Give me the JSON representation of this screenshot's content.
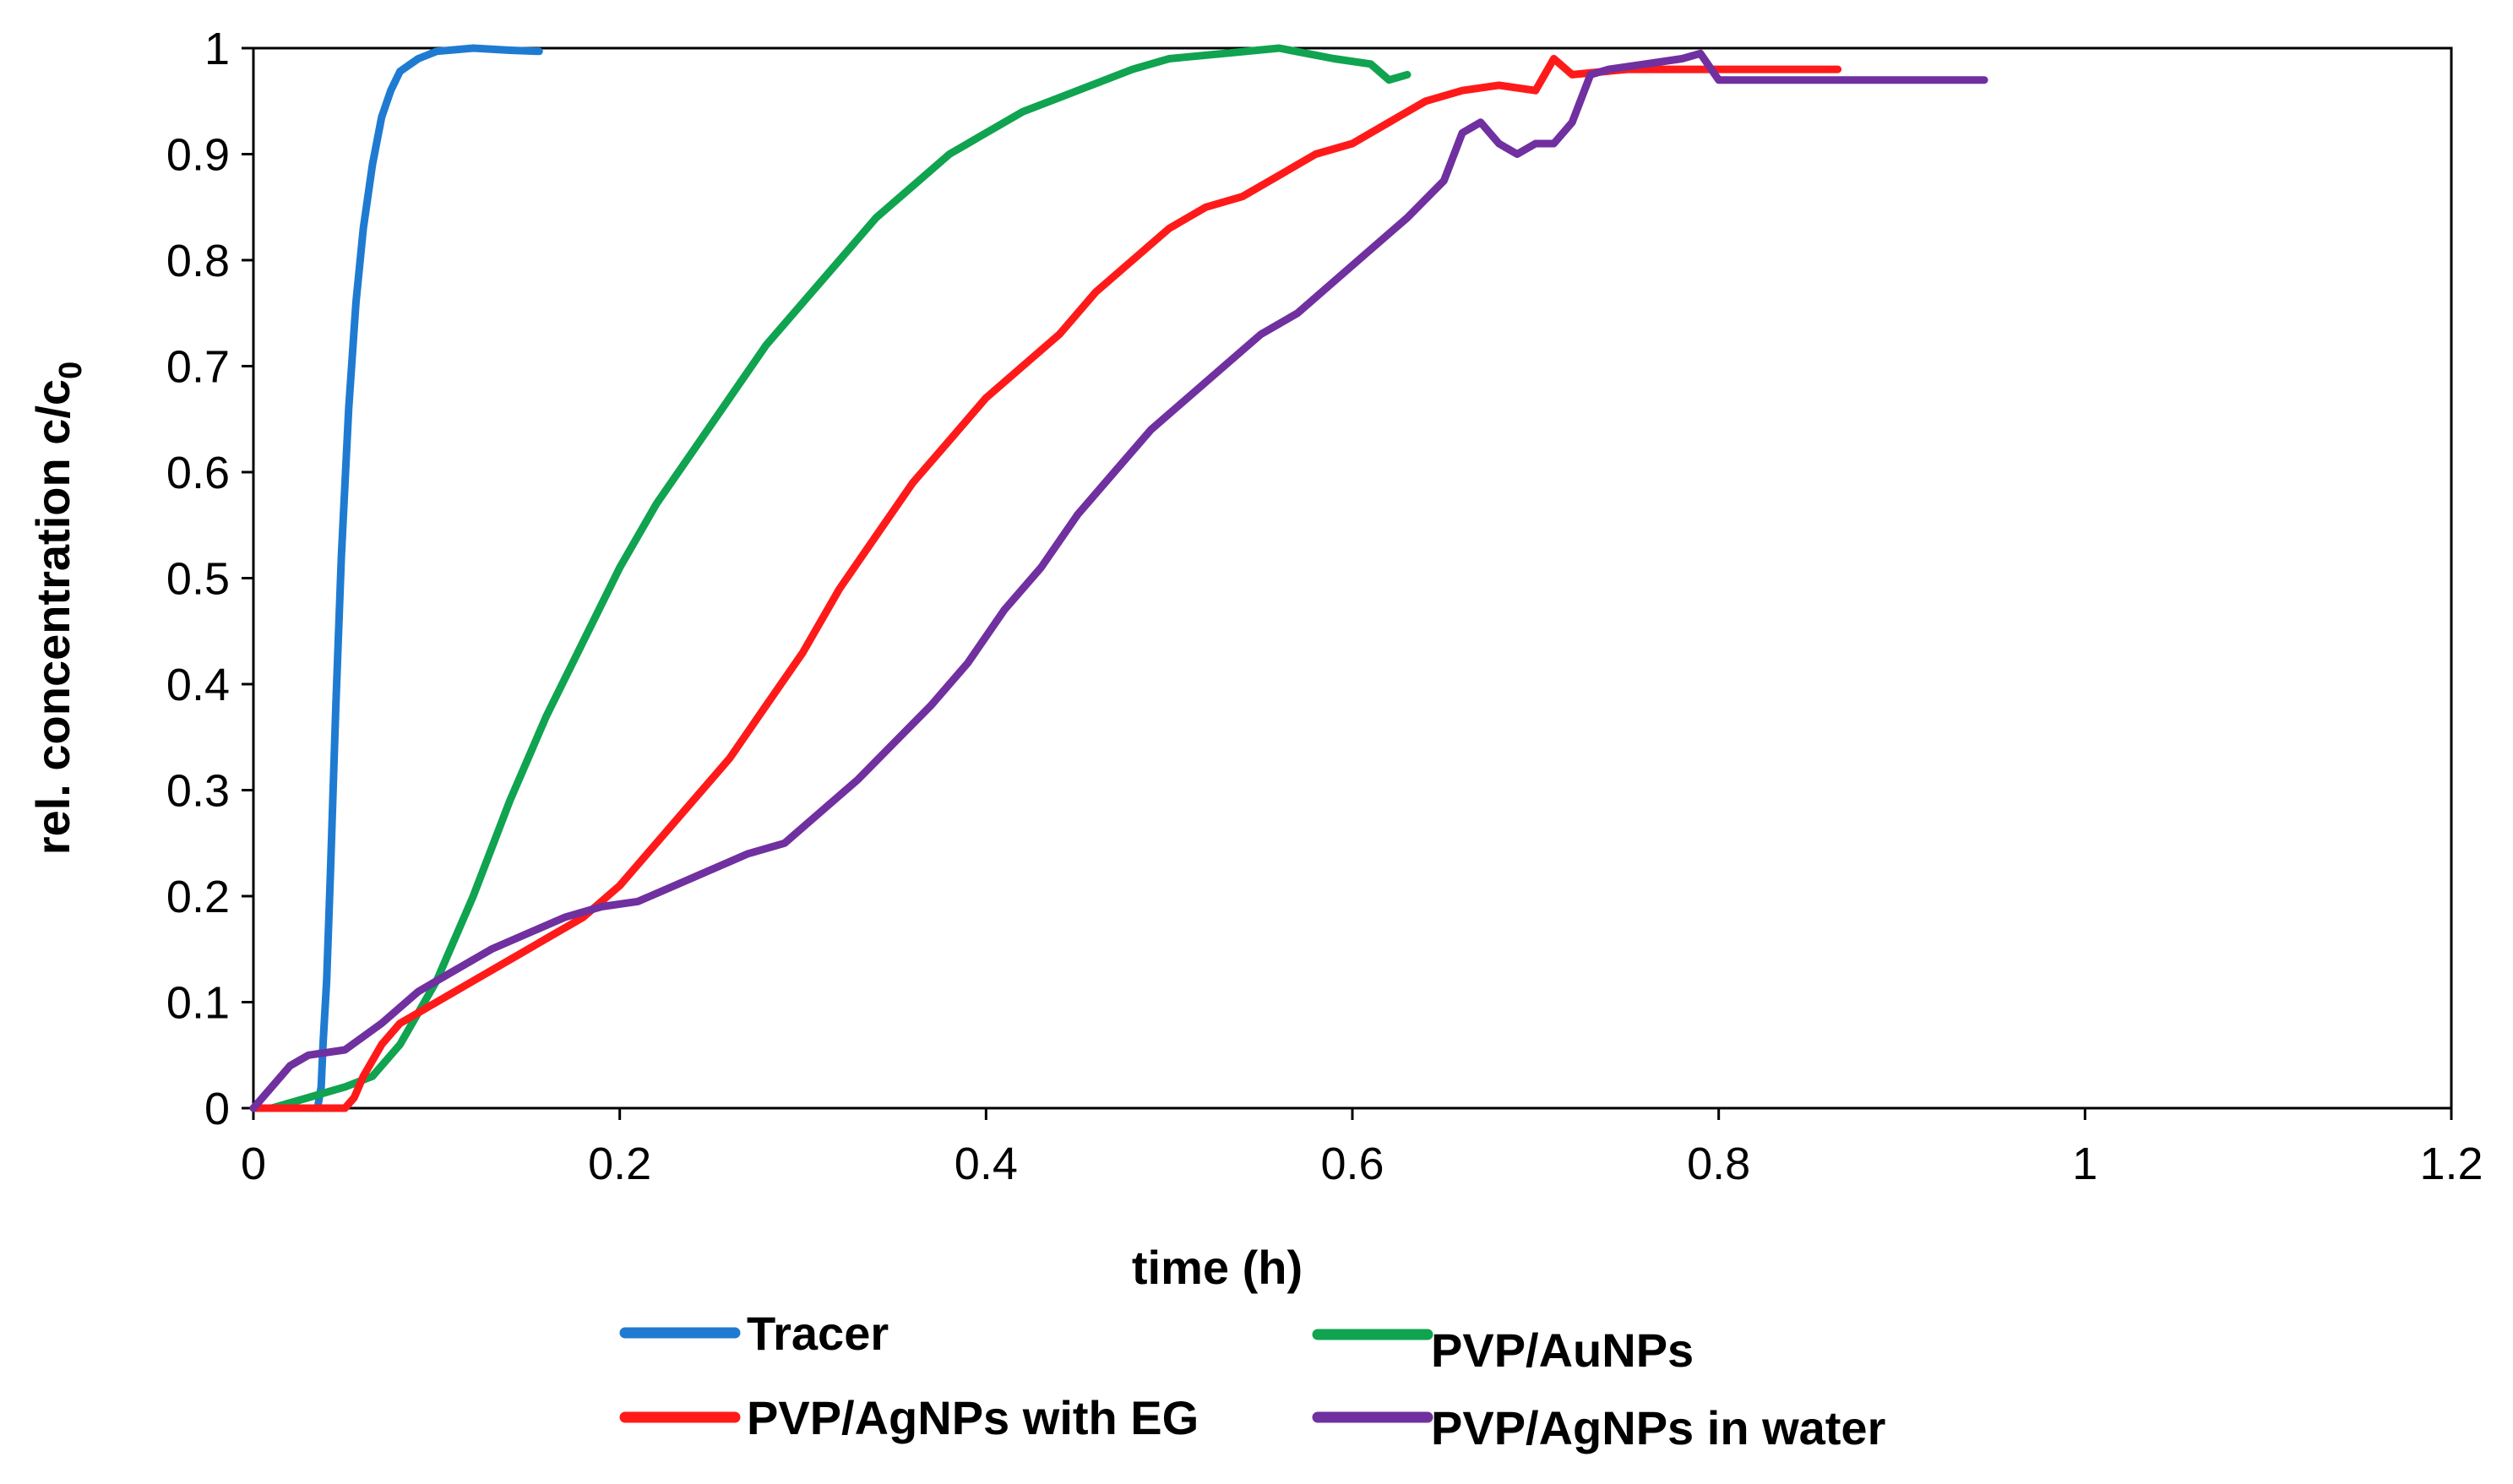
{
  "chart_data": {
    "type": "line",
    "title": "",
    "xlabel": "time (h)",
    "ylabel": "rel. concentration c/c",
    "ylabel_subscript": "0",
    "xlim": [
      0,
      1.2
    ],
    "ylim": [
      0,
      1
    ],
    "grid": false,
    "legend_position": "bottom",
    "x_ticks": [
      "0",
      "0.2",
      "0.4",
      "0.6",
      "0.8",
      "1",
      "1.2"
    ],
    "y_ticks": [
      "0",
      "0.1",
      "0.2",
      "0.3",
      "0.4",
      "0.5",
      "0.6",
      "0.7",
      "0.8",
      "0.9",
      "1"
    ],
    "series": [
      {
        "name": "Tracer",
        "color": "#1f7bd1",
        "points": [
          [
            0.0,
            0.0
          ],
          [
            0.035,
            0.0
          ],
          [
            0.037,
            0.02
          ],
          [
            0.038,
            0.06
          ],
          [
            0.04,
            0.12
          ],
          [
            0.042,
            0.22
          ],
          [
            0.045,
            0.38
          ],
          [
            0.048,
            0.52
          ],
          [
            0.052,
            0.66
          ],
          [
            0.056,
            0.76
          ],
          [
            0.06,
            0.83
          ],
          [
            0.065,
            0.89
          ],
          [
            0.07,
            0.935
          ],
          [
            0.075,
            0.96
          ],
          [
            0.08,
            0.978
          ],
          [
            0.09,
            0.99
          ],
          [
            0.1,
            0.997
          ],
          [
            0.12,
            1.0
          ],
          [
            0.14,
            0.998
          ],
          [
            0.156,
            0.997
          ]
        ]
      },
      {
        "name": "PVP/AuNPs",
        "color": "#10a350",
        "points": [
          [
            0.01,
            0.0
          ],
          [
            0.03,
            0.01
          ],
          [
            0.05,
            0.02
          ],
          [
            0.065,
            0.03
          ],
          [
            0.08,
            0.06
          ],
          [
            0.1,
            0.12
          ],
          [
            0.12,
            0.2
          ],
          [
            0.14,
            0.29
          ],
          [
            0.16,
            0.37
          ],
          [
            0.18,
            0.44
          ],
          [
            0.2,
            0.51
          ],
          [
            0.22,
            0.57
          ],
          [
            0.24,
            0.62
          ],
          [
            0.26,
            0.67
          ],
          [
            0.28,
            0.72
          ],
          [
            0.3,
            0.76
          ],
          [
            0.32,
            0.8
          ],
          [
            0.34,
            0.84
          ],
          [
            0.36,
            0.87
          ],
          [
            0.38,
            0.9
          ],
          [
            0.4,
            0.92
          ],
          [
            0.42,
            0.94
          ],
          [
            0.45,
            0.96
          ],
          [
            0.48,
            0.98
          ],
          [
            0.5,
            0.99
          ],
          [
            0.53,
            0.995
          ],
          [
            0.56,
            1.0
          ],
          [
            0.59,
            0.99
          ],
          [
            0.61,
            0.985
          ],
          [
            0.62,
            0.97
          ],
          [
            0.63,
            0.975
          ]
        ]
      },
      {
        "name": "PVP/AgNPs with EG",
        "color": "#ff1a1a",
        "points": [
          [
            0.0,
            0.0
          ],
          [
            0.05,
            0.0
          ],
          [
            0.055,
            0.01
          ],
          [
            0.06,
            0.03
          ],
          [
            0.07,
            0.06
          ],
          [
            0.08,
            0.08
          ],
          [
            0.1,
            0.1
          ],
          [
            0.12,
            0.12
          ],
          [
            0.14,
            0.14
          ],
          [
            0.16,
            0.16
          ],
          [
            0.18,
            0.18
          ],
          [
            0.2,
            0.21
          ],
          [
            0.22,
            0.25
          ],
          [
            0.24,
            0.29
          ],
          [
            0.26,
            0.33
          ],
          [
            0.28,
            0.38
          ],
          [
            0.3,
            0.43
          ],
          [
            0.32,
            0.49
          ],
          [
            0.34,
            0.54
          ],
          [
            0.36,
            0.59
          ],
          [
            0.38,
            0.63
          ],
          [
            0.4,
            0.67
          ],
          [
            0.42,
            0.7
          ],
          [
            0.44,
            0.73
          ],
          [
            0.46,
            0.77
          ],
          [
            0.48,
            0.8
          ],
          [
            0.5,
            0.83
          ],
          [
            0.52,
            0.85
          ],
          [
            0.54,
            0.86
          ],
          [
            0.56,
            0.88
          ],
          [
            0.58,
            0.9
          ],
          [
            0.6,
            0.91
          ],
          [
            0.62,
            0.93
          ],
          [
            0.64,
            0.95
          ],
          [
            0.66,
            0.96
          ],
          [
            0.68,
            0.965
          ],
          [
            0.7,
            0.96
          ],
          [
            0.71,
            0.99
          ],
          [
            0.72,
            0.975
          ],
          [
            0.75,
            0.98
          ],
          [
            0.8,
            0.98
          ],
          [
            0.865,
            0.98
          ]
        ]
      },
      {
        "name": "PVP/AgNPs in water",
        "color": "#7030a0",
        "points": [
          [
            0.0,
            0.0
          ],
          [
            0.01,
            0.02
          ],
          [
            0.02,
            0.04
          ],
          [
            0.03,
            0.05
          ],
          [
            0.05,
            0.055
          ],
          [
            0.07,
            0.08
          ],
          [
            0.09,
            0.11
          ],
          [
            0.11,
            0.13
          ],
          [
            0.13,
            0.15
          ],
          [
            0.15,
            0.165
          ],
          [
            0.17,
            0.18
          ],
          [
            0.19,
            0.19
          ],
          [
            0.21,
            0.195
          ],
          [
            0.23,
            0.21
          ],
          [
            0.25,
            0.225
          ],
          [
            0.27,
            0.24
          ],
          [
            0.29,
            0.25
          ],
          [
            0.31,
            0.28
          ],
          [
            0.33,
            0.31
          ],
          [
            0.35,
            0.345
          ],
          [
            0.37,
            0.38
          ],
          [
            0.39,
            0.42
          ],
          [
            0.41,
            0.47
          ],
          [
            0.43,
            0.51
          ],
          [
            0.45,
            0.56
          ],
          [
            0.47,
            0.6
          ],
          [
            0.49,
            0.64
          ],
          [
            0.51,
            0.67
          ],
          [
            0.53,
            0.7
          ],
          [
            0.55,
            0.73
          ],
          [
            0.57,
            0.75
          ],
          [
            0.59,
            0.78
          ],
          [
            0.61,
            0.81
          ],
          [
            0.63,
            0.84
          ],
          [
            0.65,
            0.875
          ],
          [
            0.66,
            0.92
          ],
          [
            0.67,
            0.93
          ],
          [
            0.68,
            0.91
          ],
          [
            0.69,
            0.9
          ],
          [
            0.7,
            0.91
          ],
          [
            0.71,
            0.91
          ],
          [
            0.72,
            0.93
          ],
          [
            0.73,
            0.975
          ],
          [
            0.74,
            0.98
          ],
          [
            0.76,
            0.985
          ],
          [
            0.78,
            0.99
          ],
          [
            0.79,
            0.995
          ],
          [
            0.8,
            0.97
          ],
          [
            0.85,
            0.97
          ],
          [
            0.9,
            0.97
          ],
          [
            0.945,
            0.97
          ]
        ]
      }
    ],
    "legend": [
      {
        "label": "Tracer",
        "color": "#1f7bd1"
      },
      {
        "label": "PVP/AuNPs",
        "color": "#10a350"
      },
      {
        "label": "PVP/AgNPs with EG",
        "color": "#ff1a1a"
      },
      {
        "label": "PVP/AgNPs in water",
        "color": "#7030a0"
      }
    ]
  }
}
